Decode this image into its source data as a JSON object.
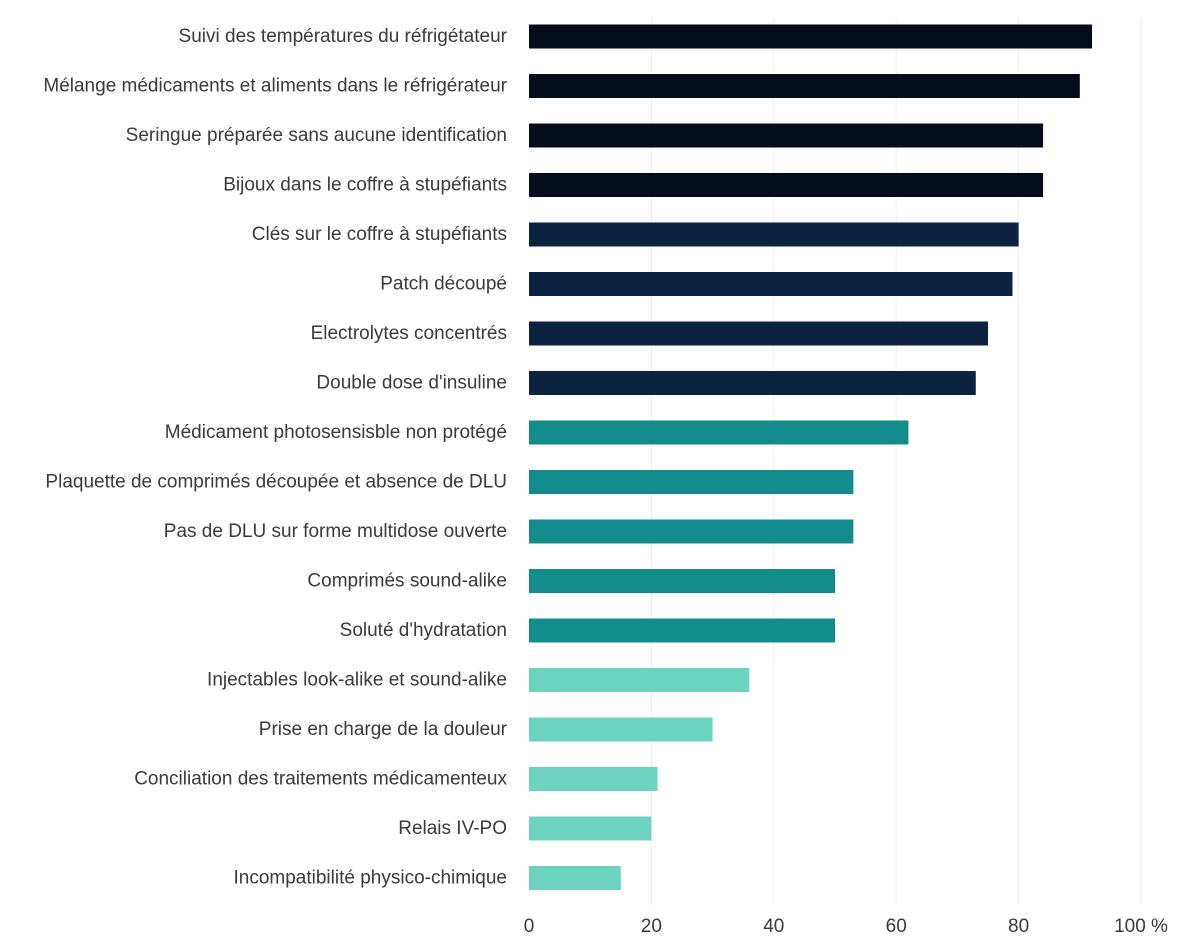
{
  "chart_data": {
    "type": "bar",
    "orientation": "horizontal",
    "title": "",
    "xlabel": "",
    "ylabel": "",
    "xlim": [
      0,
      100
    ],
    "x_ticks": [
      0,
      20,
      40,
      60,
      80,
      100
    ],
    "x_tick_labels": [
      "0",
      "20",
      "40",
      "60",
      "80",
      "100 %"
    ],
    "grid": "vertical-light",
    "legend": "none",
    "categories": [
      "Suivi des températures du réfrigétateur",
      "Mélange médicaments et aliments dans le réfrigérateur",
      "Seringue préparée sans aucune identification",
      "Bijoux dans le coffre à stupéfiants",
      "Clés sur le coffre à stupéfiants",
      "Patch découpé",
      "Electrolytes concentrés",
      "Double dose d'insuline",
      "Médicament photosensisble non protégé",
      "Plaquette de comprimés découpée et absence de DLU",
      "Pas de DLU sur forme multidose ouverte",
      "Comprimés sound-alike",
      "Soluté d'hydratation",
      "Injectables look-alike et sound-alike",
      "Prise en charge de la douleur",
      "Conciliation des traitements médicamenteux",
      "Relais IV-PO",
      "Incompatibilité physico-chimique"
    ],
    "values": [
      92,
      90,
      84,
      84,
      80,
      79,
      75,
      73,
      62,
      53,
      53,
      50,
      50,
      36,
      30,
      21,
      20,
      15
    ],
    "bar_colors": [
      "#050d1c",
      "#050d1c",
      "#050d1c",
      "#050d1c",
      "#0b2340",
      "#0b2340",
      "#0b2340",
      "#0b2340",
      "#128c8a",
      "#128c8a",
      "#128c8a",
      "#128c8a",
      "#128c8a",
      "#6dd3c1",
      "#6dd3c1",
      "#6dd3c1",
      "#6dd3c1",
      "#6dd3c1"
    ]
  }
}
